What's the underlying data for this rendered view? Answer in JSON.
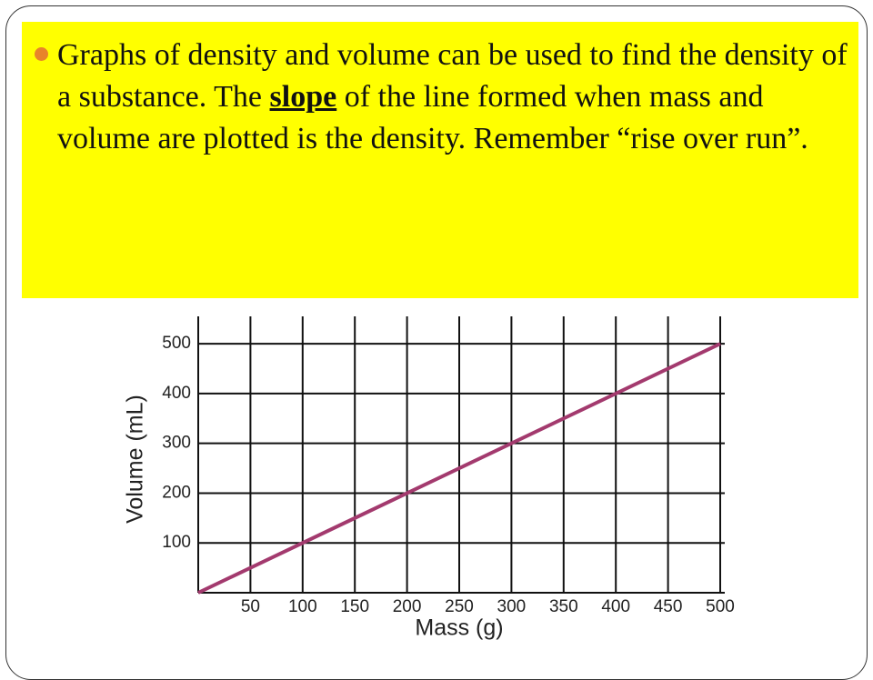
{
  "slide": {
    "bullet": [
      "Graphs of density and volume can be used to find the density of a substance.  The ",
      "slope",
      " of the line formed when mass and volume are plotted is the density.  Remember “rise over run”."
    ]
  },
  "chart_data": {
    "type": "line",
    "x": [
      0,
      500
    ],
    "values": [
      0,
      500
    ],
    "color": "#a33a6e",
    "x_label": "Mass (g)",
    "y_label": "Volume (mL)",
    "xlim": [
      0,
      500
    ],
    "ylim": [
      0,
      555
    ],
    "xticks": [
      50,
      100,
      150,
      200,
      250,
      300,
      350,
      400,
      450,
      500
    ],
    "yticks": [
      100,
      200,
      300,
      400,
      500
    ],
    "grid": true
  }
}
